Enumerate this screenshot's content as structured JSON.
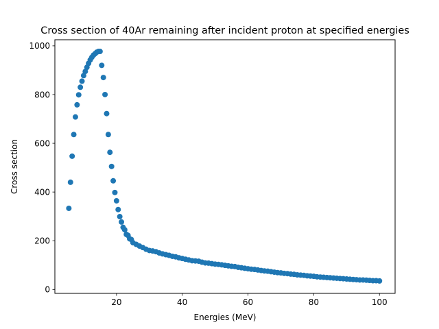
{
  "chart_data": {
    "type": "scatter",
    "title": "Cross section of 40Ar remaining after incident proton at specified energies",
    "xlabel": "Energies (MeV)",
    "ylabel": "Cross section",
    "xlim": [
      1.25,
      104.75
    ],
    "ylim": [
      -16,
      1025
    ],
    "xticks": [
      20,
      40,
      60,
      80,
      100
    ],
    "yticks": [
      0,
      200,
      400,
      600,
      800,
      1000
    ],
    "grid": false,
    "marker_color": "#1f77b4",
    "x": [
      5.5,
      6,
      6.5,
      7,
      7.5,
      8,
      8.5,
      9,
      9.5,
      10,
      10.5,
      11,
      11.5,
      12,
      12.5,
      13,
      13.5,
      14,
      14.5,
      15,
      15.5,
      16,
      16.5,
      17,
      17.5,
      18,
      18.5,
      19,
      19.5,
      20,
      20.5,
      21,
      21.5,
      22,
      22.5,
      23,
      23.5,
      24,
      24.5,
      25,
      26,
      27,
      28,
      29,
      30,
      31,
      32,
      33,
      34,
      35,
      36,
      37,
      38,
      39,
      40,
      41,
      42,
      43,
      44,
      45,
      46,
      47,
      48,
      49,
      50,
      51,
      52,
      53,
      54,
      55,
      56,
      57,
      58,
      59,
      60,
      61,
      62,
      63,
      64,
      65,
      66,
      67,
      68,
      69,
      70,
      71,
      72,
      73,
      74,
      75,
      76,
      77,
      78,
      79,
      80,
      81,
      82,
      83,
      84,
      85,
      86,
      87,
      88,
      89,
      90,
      91,
      92,
      93,
      94,
      95,
      96,
      97,
      98,
      99,
      100
    ],
    "y": [
      333,
      440,
      547,
      636,
      708,
      758,
      799,
      830,
      855,
      878,
      895,
      912,
      928,
      942,
      953,
      962,
      968,
      974,
      977,
      977,
      920,
      870,
      800,
      722,
      636,
      563,
      505,
      446,
      398,
      364,
      328,
      299,
      277,
      255,
      245,
      226,
      222,
      208,
      205,
      192,
      185,
      178,
      172,
      165,
      160,
      158,
      155,
      150,
      146,
      143,
      140,
      136,
      134,
      130,
      127,
      124,
      121,
      118,
      117,
      116,
      112,
      109,
      108,
      106,
      104,
      103,
      101,
      99,
      97,
      95,
      94,
      91,
      89,
      87,
      85,
      83,
      82,
      80,
      78,
      76,
      75,
      73,
      71,
      69,
      68,
      66,
      65,
      63,
      62,
      60,
      59,
      58,
      56,
      55,
      54,
      52,
      51,
      50,
      49,
      48,
      47,
      46,
      45,
      44,
      43,
      42,
      41,
      40,
      39,
      39,
      38,
      37,
      36,
      36,
      35
    ],
    "marker_radius_px": 4
  }
}
